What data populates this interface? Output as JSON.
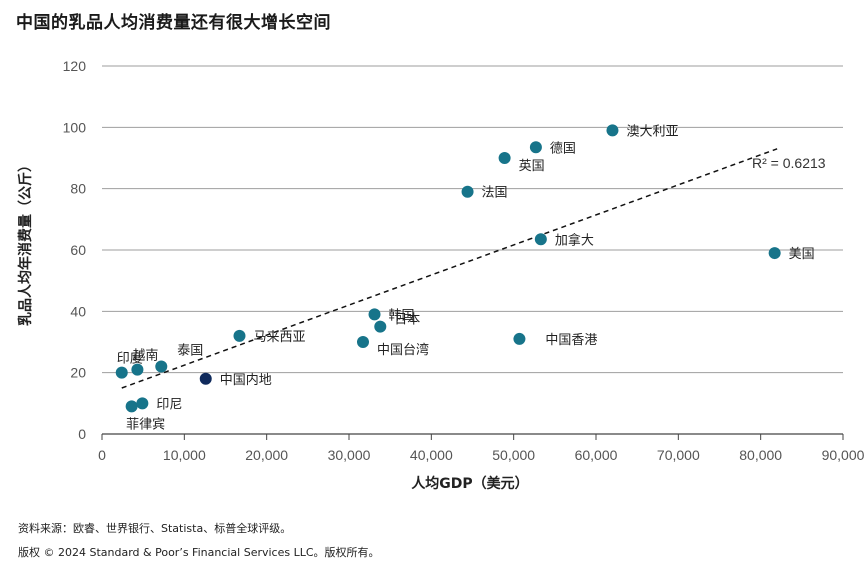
{
  "title": "中国的乳品人均消费量还有很大增长空间",
  "chart_data": {
    "type": "scatter",
    "title": "中国的乳品人均消费量还有很大增长空间",
    "xlabel": "人均GDP（美元）",
    "ylabel": "乳品人均年消费量（公斤）",
    "xlim": [
      0,
      90000
    ],
    "ylim": [
      0,
      120
    ],
    "x_ticks": [
      0,
      10000,
      20000,
      30000,
      40000,
      50000,
      60000,
      70000,
      80000,
      90000
    ],
    "x_tick_labels": [
      "0",
      "10,000",
      "20,000",
      "30,000",
      "40,000",
      "50,000",
      "60,000",
      "70,000",
      "80,000",
      "90,000"
    ],
    "y_ticks": [
      0,
      20,
      40,
      60,
      80,
      100,
      120
    ],
    "y_tick_labels": [
      "0",
      "20",
      "40",
      "60",
      "80",
      "100",
      "120"
    ],
    "grid": "horizontal",
    "colors": {
      "point": "#17748a",
      "highlight": "#0f2a5c",
      "grid": "#9e9e9e",
      "trend": "#111111"
    },
    "points": [
      {
        "label": "澳大利亚",
        "x": 62000,
        "y": 99,
        "label_pos": "right"
      },
      {
        "label": "德国",
        "x": 52700,
        "y": 93.5,
        "label_pos": "right"
      },
      {
        "label": "英国",
        "x": 48900,
        "y": 90,
        "label_pos": "right-below"
      },
      {
        "label": "法国",
        "x": 44400,
        "y": 79,
        "label_pos": "right"
      },
      {
        "label": "加拿大",
        "x": 53300,
        "y": 63.5,
        "label_pos": "right"
      },
      {
        "label": "美国",
        "x": 81700,
        "y": 59,
        "label_pos": "right"
      },
      {
        "label": "韩国",
        "x": 33100,
        "y": 39,
        "label_pos": "right"
      },
      {
        "label": "日本",
        "x": 33800,
        "y": 35,
        "label_pos": "right-above"
      },
      {
        "label": "中国台湾",
        "x": 31700,
        "y": 30,
        "label_pos": "right-below"
      },
      {
        "label": "中国香港",
        "x": 50700,
        "y": 31,
        "label_pos": "far-right"
      },
      {
        "label": "马来西亚",
        "x": 16700,
        "y": 32,
        "label_pos": "right"
      },
      {
        "label": "泰国",
        "x": 7200,
        "y": 22,
        "label_pos": "above-right"
      },
      {
        "label": "越南",
        "x": 4300,
        "y": 21,
        "label_pos": "above"
      },
      {
        "label": "印度",
        "x": 2400,
        "y": 20,
        "label_pos": "above"
      },
      {
        "label": "中国内地",
        "x": 12600,
        "y": 18,
        "label_pos": "right",
        "highlight": true
      },
      {
        "label": "印尼",
        "x": 4900,
        "y": 10,
        "label_pos": "right"
      },
      {
        "label": "菲律宾",
        "x": 3600,
        "y": 9,
        "label_pos": "below"
      }
    ],
    "trendline": {
      "x_start": 2400,
      "y_start": 15,
      "x_end": 82000,
      "y_end": 93
    },
    "annotation": "R² = 0.6213"
  },
  "footer": {
    "source": "资料来源：欧睿、世界银行、Statista、标普全球评级。",
    "copyright": "版权 © 2024 Standard & Poor’s Financial Services LLC。版权所有。"
  }
}
